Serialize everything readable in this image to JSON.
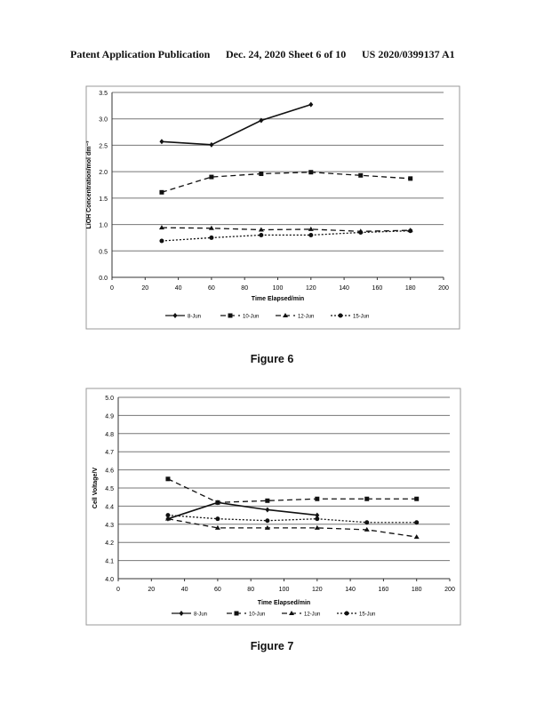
{
  "header": {
    "left": "Patent Application Publication",
    "middle": "Dec. 24, 2020  Sheet 6 of 10",
    "right": "US 2020/0399137 A1"
  },
  "figures": [
    {
      "label": "Figure 6"
    },
    {
      "label": "Figure 7"
    }
  ],
  "chart_data": [
    {
      "type": "line",
      "title": "",
      "xlabel": "Time Elapsed/min",
      "ylabel": "LiOH Concentration/mol dm⁻³",
      "xlim": [
        0,
        200
      ],
      "ylim": [
        0,
        3.5
      ],
      "xticks": [
        0,
        20,
        40,
        60,
        80,
        100,
        120,
        140,
        160,
        180,
        200
      ],
      "yticks": [
        "0.0",
        "0.5",
        "1.0",
        "1.5",
        "2.0",
        "2.5",
        "3.0",
        "3.5"
      ],
      "grid": "horizontal",
      "legend": "bottom",
      "series": [
        {
          "name": "8-Jun",
          "marker": "diamond",
          "dash": "solid",
          "x": [
            30,
            60,
            90,
            120
          ],
          "y": [
            2.57,
            2.51,
            2.97,
            3.27
          ]
        },
        {
          "name": "10-Jun",
          "marker": "square",
          "dash": "dashed",
          "x": [
            30,
            60,
            90,
            120,
            150,
            180
          ],
          "y": [
            1.61,
            1.9,
            1.96,
            1.99,
            1.93,
            1.87
          ]
        },
        {
          "name": "12-Jun",
          "marker": "triangle",
          "dash": "dashed",
          "x": [
            30,
            60,
            90,
            120,
            150,
            180
          ],
          "y": [
            0.94,
            0.93,
            0.9,
            0.91,
            0.87,
            0.89
          ]
        },
        {
          "name": "15-Jun",
          "marker": "circle",
          "dash": "dotted",
          "x": [
            30,
            60,
            90,
            120,
            150,
            180
          ],
          "y": [
            0.69,
            0.75,
            0.8,
            0.8,
            0.85,
            0.88
          ]
        }
      ]
    },
    {
      "type": "line",
      "title": "",
      "xlabel": "Time Elapsed/min",
      "ylabel": "Cell Voltage/V",
      "xlim": [
        0,
        200
      ],
      "ylim": [
        4.0,
        5.0
      ],
      "xticks": [
        0,
        20,
        40,
        60,
        80,
        100,
        120,
        140,
        160,
        180,
        200
      ],
      "yticks": [
        "4.0",
        "4.1",
        "4.2",
        "4.3",
        "4.4",
        "4.5",
        "4.6",
        "4.7",
        "4.8",
        "4.9",
        "5.0"
      ],
      "grid": "horizontal",
      "legend": "bottom",
      "series": [
        {
          "name": "8-Jun",
          "marker": "diamond",
          "dash": "solid",
          "x": [
            30,
            60,
            90,
            120
          ],
          "y": [
            4.33,
            4.42,
            4.38,
            4.35
          ]
        },
        {
          "name": "10-Jun",
          "marker": "square",
          "dash": "dashed",
          "x": [
            30,
            60,
            90,
            120,
            150,
            180
          ],
          "y": [
            4.55,
            4.42,
            4.43,
            4.44,
            4.44,
            4.44
          ]
        },
        {
          "name": "12-Jun",
          "marker": "triangle",
          "dash": "dashed",
          "x": [
            30,
            60,
            90,
            120,
            150,
            180
          ],
          "y": [
            4.33,
            4.28,
            4.28,
            4.28,
            4.27,
            4.23
          ]
        },
        {
          "name": "15-Jun",
          "marker": "circle",
          "dash": "dotted",
          "x": [
            30,
            60,
            90,
            120,
            150,
            180
          ],
          "y": [
            4.35,
            4.33,
            4.32,
            4.33,
            4.31,
            4.31
          ]
        }
      ]
    }
  ]
}
